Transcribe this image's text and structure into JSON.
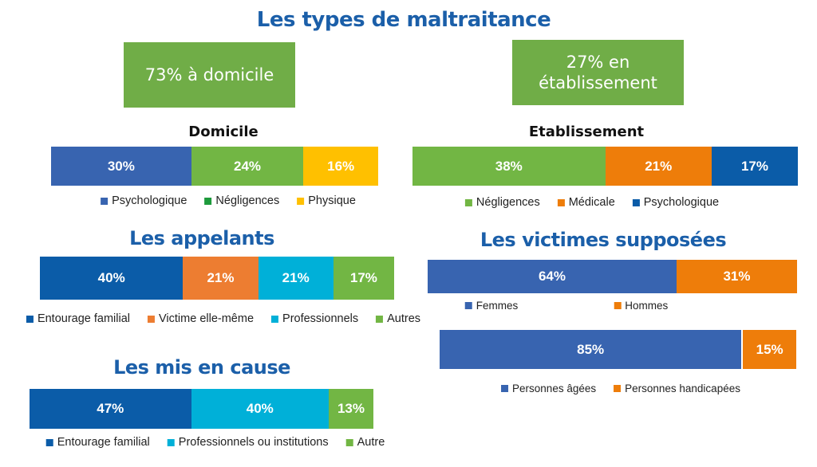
{
  "title": "Les types de maltraitance",
  "boxes": {
    "domicile": "73% à domicile",
    "etablissement": "27% en\nétablissement"
  },
  "chart_data": [
    {
      "id": "domicile",
      "type": "bar",
      "stacked": true,
      "orientation": "horizontal",
      "title": "Domicile",
      "series": [
        {
          "name": "Psychologique",
          "value": 30,
          "label": "30%",
          "color": "#3864b0",
          "legend_color": "#3864b0"
        },
        {
          "name": "Négligences",
          "value": 24,
          "label": "24%",
          "color": "#72b644",
          "legend_color": "#1e9a3c"
        },
        {
          "name": "Physique",
          "value": 16,
          "label": "16%",
          "color": "#ffc000",
          "legend_color": "#ffc000"
        }
      ]
    },
    {
      "id": "etablissement",
      "type": "bar",
      "stacked": true,
      "orientation": "horizontal",
      "title": "Etablissement",
      "series": [
        {
          "name": "Négligences",
          "value": 38,
          "label": "38%",
          "color": "#72b644",
          "legend_color": "#72b644"
        },
        {
          "name": "Médicale",
          "value": 21,
          "label": "21%",
          "color": "#ee7d0a",
          "legend_color": "#ee7d0a"
        },
        {
          "name": "Psychologique",
          "value": 17,
          "label": "17%",
          "color": "#0b5ca8",
          "legend_color": "#0b5ca8"
        }
      ]
    },
    {
      "id": "appelants",
      "type": "bar",
      "stacked": true,
      "orientation": "horizontal",
      "title": "Les appelants",
      "series": [
        {
          "name": "Entourage familial",
          "value": 40,
          "label": "40%",
          "color": "#0b5ca8",
          "legend_color": "#0b5ca8"
        },
        {
          "name": "Victime elle-même",
          "value": 21,
          "label": "21%",
          "color": "#ed7d31",
          "legend_color": "#ed7d31"
        },
        {
          "name": "Professionnels",
          "value": 21,
          "label": "21%",
          "color": "#00b0d8",
          "legend_color": "#00b0d8"
        },
        {
          "name": "Autres",
          "value": 17,
          "label": "17%",
          "color": "#72b644",
          "legend_color": "#72b644"
        }
      ]
    },
    {
      "id": "victimes_sexe",
      "type": "bar",
      "stacked": true,
      "orientation": "horizontal",
      "title": "Les victimes supposées",
      "series": [
        {
          "name": "Femmes",
          "value": 64,
          "label": "64%",
          "color": "#3864b0",
          "legend_color": "#3864b0"
        },
        {
          "name": "Hommes",
          "value": 31,
          "label": "31%",
          "color": "#ee7d0a",
          "legend_color": "#ee7d0a"
        }
      ]
    },
    {
      "id": "victimes_type",
      "type": "bar",
      "stacked": true,
      "orientation": "horizontal",
      "title": "",
      "series": [
        {
          "name": "Personnes âgées",
          "value": 85,
          "label": "85%",
          "color": "#3864b0",
          "legend_color": "#3864b0"
        },
        {
          "name": "Personnes handicapées",
          "value": 15,
          "label": "15%",
          "color": "#ee7d0a",
          "legend_color": "#ee7d0a"
        }
      ]
    },
    {
      "id": "mis_en_cause",
      "type": "bar",
      "stacked": true,
      "orientation": "horizontal",
      "title": "Les mis en cause",
      "series": [
        {
          "name": "Entourage familial",
          "value": 47,
          "label": "47%",
          "color": "#0b5ca8",
          "legend_color": "#0b5ca8"
        },
        {
          "name": "Professionnels ou institutions",
          "value": 40,
          "label": "40%",
          "color": "#00b0d8",
          "legend_color": "#00b0d8"
        },
        {
          "name": "Autre",
          "value": 13,
          "label": "13%",
          "color": "#72b644",
          "legend_color": "#72b644"
        }
      ]
    }
  ]
}
